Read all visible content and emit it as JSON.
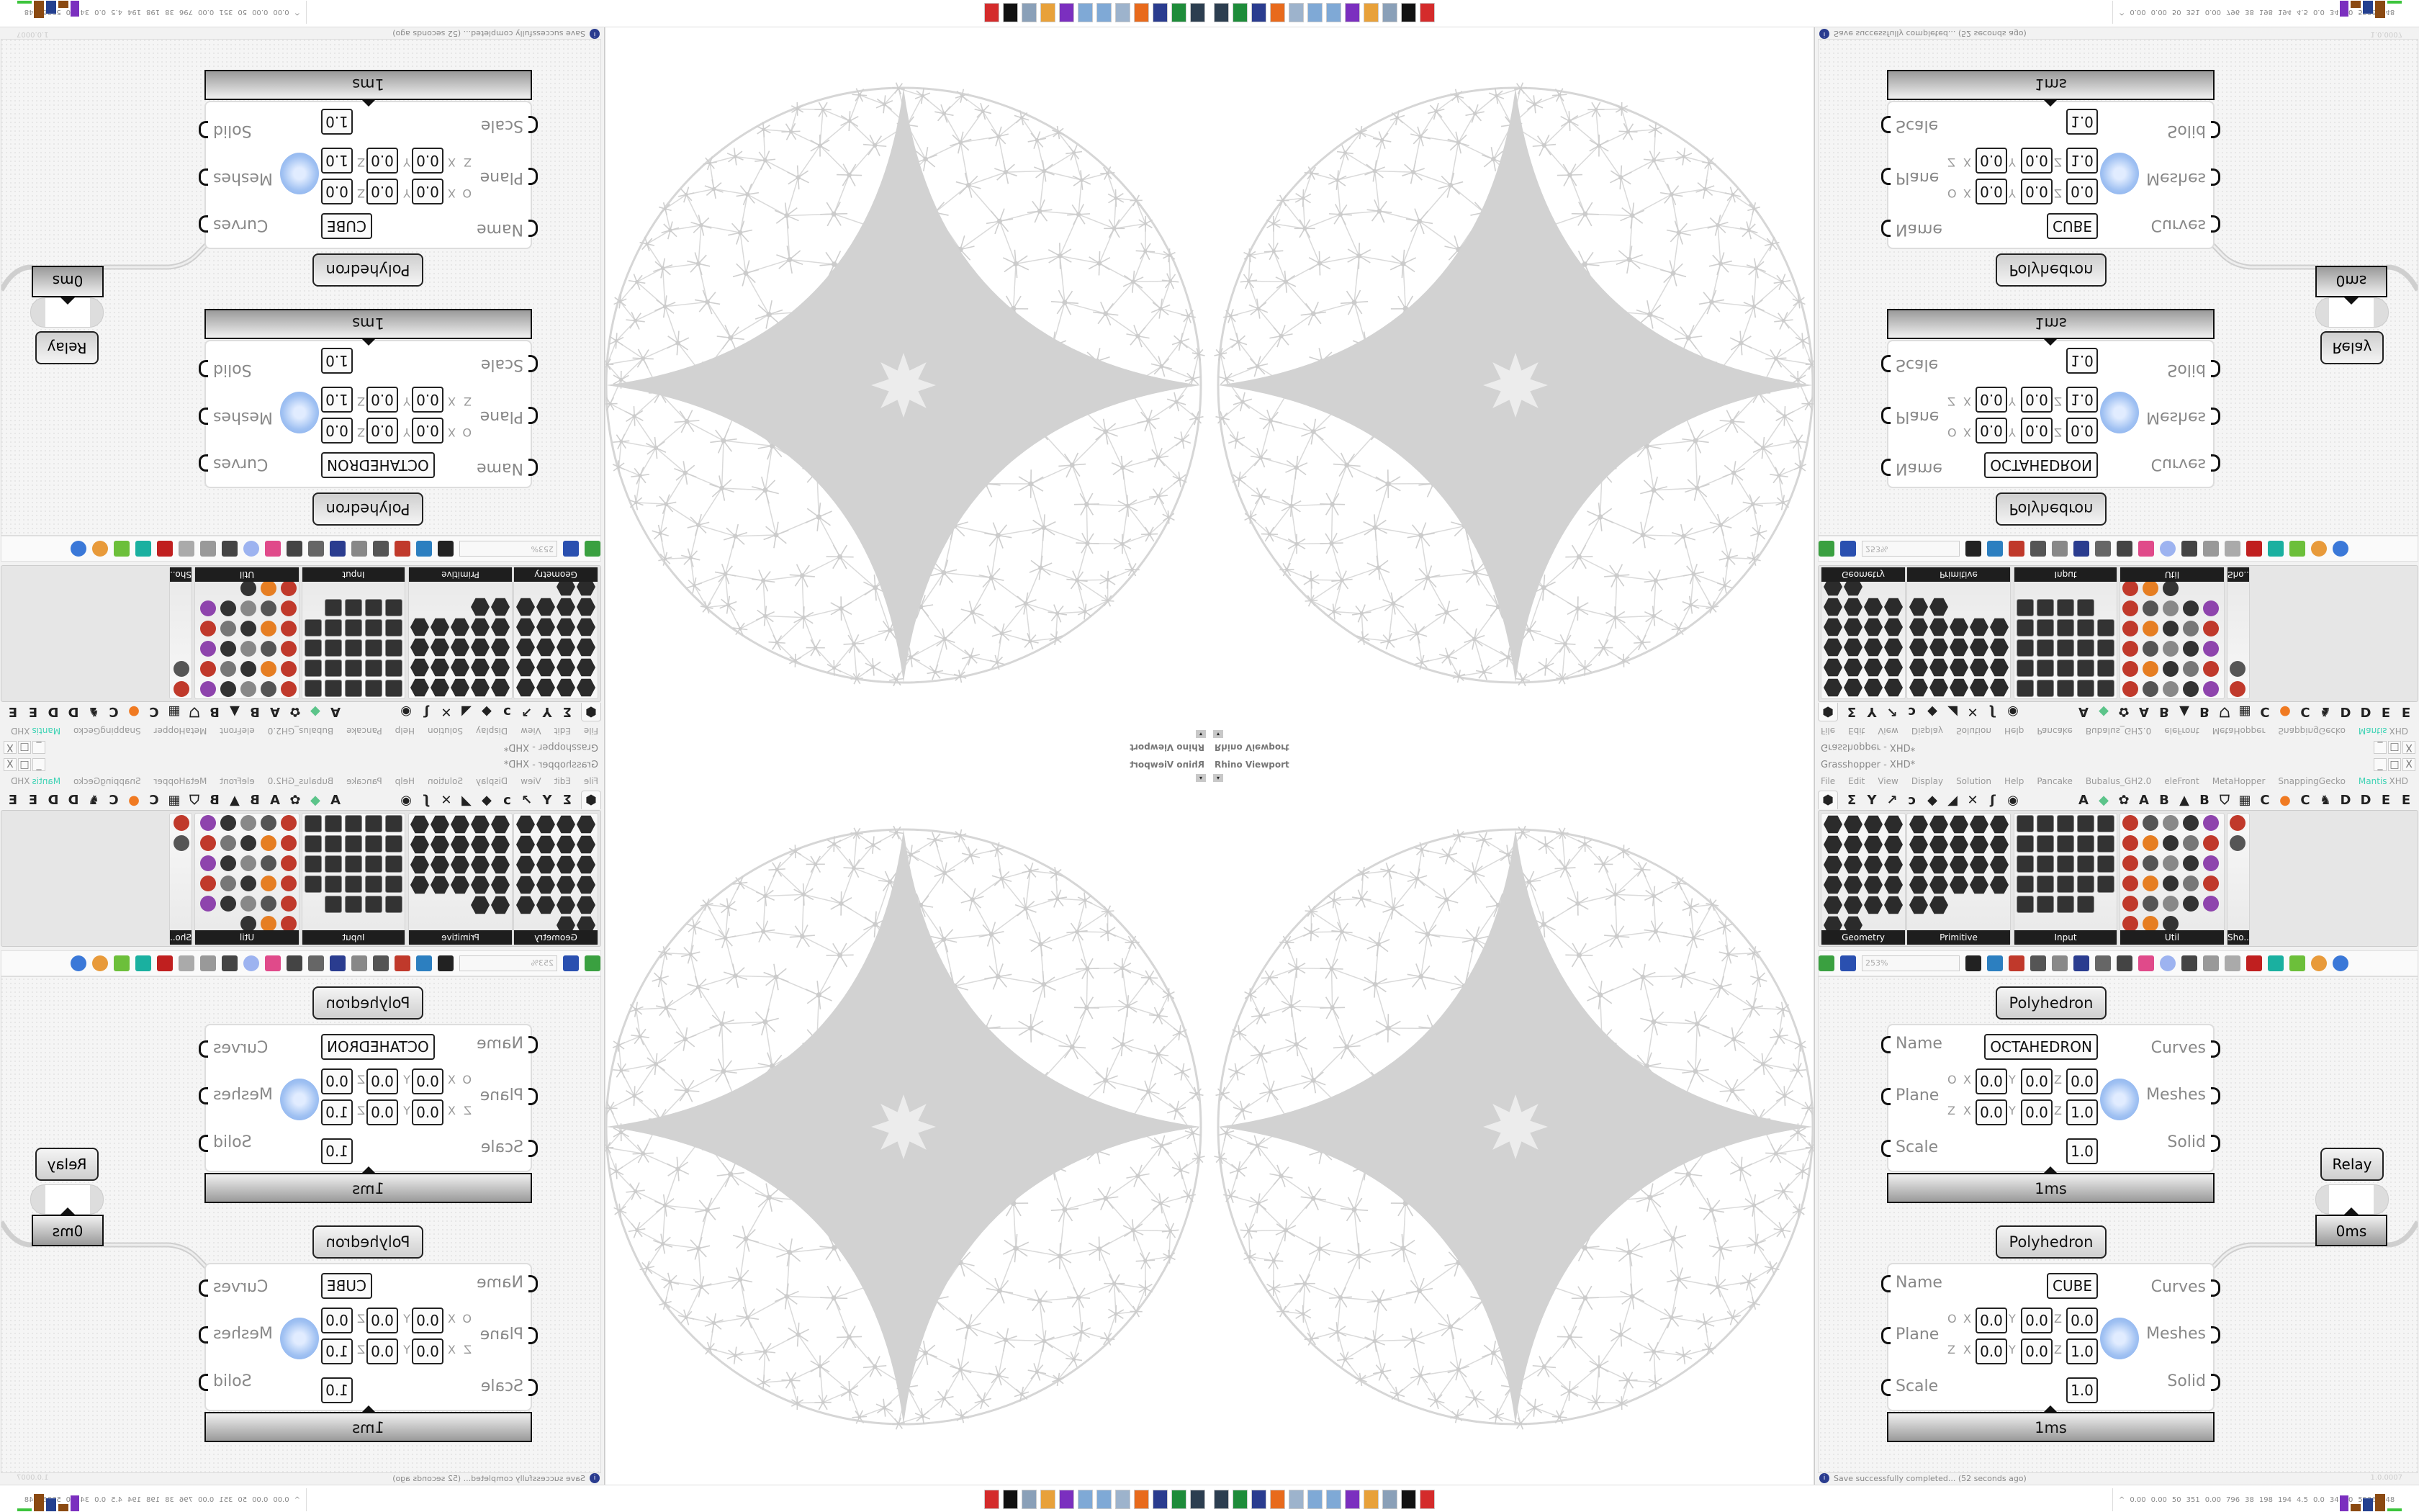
{
  "viewport": {
    "title": "Rhino Viewport",
    "dropdown_glyph": "▾"
  },
  "window": {
    "title": "Grasshopper - XHD*",
    "controls": [
      "_",
      "□",
      "X"
    ],
    "doc_name": "XHD"
  },
  "menu": {
    "items": [
      "File",
      "Edit",
      "View",
      "Display",
      "Solution",
      "Help",
      "Pancake",
      "Bubalus_GH2.0",
      "eleFront",
      "MetaHopper",
      "SnappingGecko",
      "Mantis"
    ],
    "active": "Mantis",
    "active_color": "#3fd3b5"
  },
  "tabs": [
    {
      "glyph": "⬢",
      "name": "params-tab"
    },
    {
      "glyph": "Σ",
      "name": "maths-tab"
    },
    {
      "glyph": "Y",
      "name": "sets-tab"
    },
    {
      "glyph": "↗",
      "name": "vector-tab"
    },
    {
      "glyph": "ↄ",
      "name": "curve-tab"
    },
    {
      "glyph": "◆",
      "name": "surface-tab"
    },
    {
      "glyph": "◢",
      "name": "mesh-tab"
    },
    {
      "glyph": "✕",
      "name": "intersect-tab"
    },
    {
      "glyph": "ʃ",
      "name": "transform-tab"
    },
    {
      "glyph": "◉",
      "name": "display-tab"
    },
    {
      "glyph": "A",
      "name": "plugin-a-tab"
    },
    {
      "glyph": "◆",
      "name": "plugin-gem-tab"
    },
    {
      "glyph": "✿",
      "name": "plugin-flower-tab"
    },
    {
      "glyph": "A",
      "name": "plugin-a2-tab"
    },
    {
      "glyph": "B",
      "name": "plugin-b-tab"
    },
    {
      "glyph": "▲",
      "name": "plugin-mountain-tab"
    },
    {
      "glyph": "B",
      "name": "plugin-b2-tab"
    },
    {
      "glyph": "⛉",
      "name": "plugin-shield-tab"
    },
    {
      "glyph": "▦",
      "name": "plugin-grid-tab"
    },
    {
      "glyph": "C",
      "name": "plugin-c-tab"
    },
    {
      "glyph": "●",
      "name": "plugin-orange-tab"
    },
    {
      "glyph": "C",
      "name": "plugin-c2-tab"
    },
    {
      "glyph": "♞",
      "name": "plugin-horse-tab"
    },
    {
      "glyph": "D",
      "name": "plugin-d-tab"
    },
    {
      "glyph": "D",
      "name": "plugin-d2-tab"
    },
    {
      "glyph": "E",
      "name": "plugin-e-tab"
    },
    {
      "glyph": "E",
      "name": "plugin-e2-tab"
    },
    {
      "glyph": "▦",
      "name": "plugin-more-tab"
    }
  ],
  "ribbon": {
    "panels": [
      {
        "label": "Geometry",
        "shape": "hex",
        "cols": 4,
        "icons": [
          "point",
          "vector",
          "plane",
          "circle",
          "arc",
          "curve",
          "line",
          "box",
          "rectangle",
          "brep",
          "surface",
          "mesh",
          "field",
          "group",
          "twisted-box",
          "atom",
          "geometry",
          "mesh-face",
          "transform",
          "pipeline",
          "geometry-cache",
          "text-dot"
        ]
      },
      {
        "label": "Primitive",
        "shape": "hex",
        "cols": 5,
        "icons": [
          "boolean",
          "colour",
          "complex",
          "culture",
          "data-path",
          "domain",
          "domain2",
          "file-path",
          "integer",
          "interval",
          "matrix",
          "number",
          "shader",
          "structure-path",
          "text",
          "time",
          "data",
          "guid",
          "generic",
          "id",
          "material",
          "fit"
        ]
      },
      {
        "label": "Input",
        "shape": "sq",
        "cols": 5,
        "icons": [
          "panel",
          "button",
          "colour-swatch",
          "3dm",
          "read-file",
          "graph-mapper",
          "gradient",
          "pipeline",
          "xyz",
          "bool-toggle",
          "colour-wheel",
          "img",
          "control-knob",
          "colour-picker",
          "curve-graph",
          "pdb",
          "clock",
          "calendar",
          "data-input",
          "shp",
          "value-list",
          "digital-scope",
          "spectrum",
          "id-tag"
        ]
      },
      {
        "label": "Util",
        "shape": "ut",
        "cols": 5,
        "icons": [
          "cherry",
          "galapagos",
          "arrow",
          "c-sharp",
          "anemone",
          "trigger",
          "record",
          "probe",
          "spiral",
          "gem",
          "gumball",
          "pencil",
          "timer",
          "numeric",
          "flask",
          "tree",
          "slider",
          "egg",
          "expression",
          "fx",
          "ring",
          "loop",
          "premiere",
          "number-tag",
          "palette",
          "abc",
          "forward",
          "gauge"
        ]
      },
      {
        "label": "Sho..",
        "shape": "ut",
        "cols": 1,
        "icons": [
          "snap-1",
          "snap-2"
        ]
      }
    ]
  },
  "canvas_toolbar": {
    "zoom_value": "253%",
    "icons": [
      "open-file",
      "save-file",
      "zoom-extents",
      "preview",
      "sketch",
      "cluster",
      "mail",
      "gha",
      "canvas",
      "search",
      "package",
      "bulb",
      "wires",
      "lamp",
      "ring",
      "red-gem",
      "green-tool",
      "green-shape",
      "sphere-half",
      "blue-sphere"
    ]
  },
  "components": [
    {
      "title": "Polyhedron",
      "name_value": "OCTAHEDRON",
      "inputs": [
        "Name",
        "Plane",
        "Scale"
      ],
      "outputs": [
        "Curves",
        "Meshes",
        "Solid"
      ],
      "origin": {
        "label": "O",
        "x": "0.0",
        "y": "0.0",
        "z": "0.0"
      },
      "zaxis": {
        "label": "Z",
        "x": "0.0",
        "y": "0.0",
        "z": "1.0"
      },
      "scale": "1.0",
      "time": "1ms"
    },
    {
      "title": "Polyhedron",
      "name_value": "CUBE",
      "inputs": [
        "Name",
        "Plane",
        "Scale"
      ],
      "outputs": [
        "Curves",
        "Meshes",
        "Solid"
      ],
      "origin": {
        "label": "O",
        "x": "0.0",
        "y": "0.0",
        "z": "0.0"
      },
      "zaxis": {
        "label": "Z",
        "x": "0.0",
        "y": "0.0",
        "z": "1.0"
      },
      "scale": "1.0",
      "time": "1ms"
    }
  ],
  "axis_labels": {
    "x": "X",
    "y": "Y",
    "z": "Z"
  },
  "relay": {
    "label": "Relay",
    "time": "0ms"
  },
  "status": {
    "message": "Save successfully completed... (52 seconds ago)",
    "info_glyph": "i",
    "version": "1.0.0007"
  },
  "taskbar": {
    "app_icons": [
      "#2c3e50",
      "#1e8c3a",
      "#2a3c8f",
      "#e86a1c",
      "#9db3cc",
      "#7fa9d6",
      "#7fa9d6",
      "#7b2fbf",
      "#e8a13a",
      "#8aa0b8",
      "#111111",
      "#d42b2b"
    ],
    "stats": [
      "0.00",
      "0.00",
      "50",
      "351",
      "0.00",
      "796",
      "38",
      "198",
      "194",
      "4.5",
      "0.0",
      "34",
      "30",
      "55267048"
    ]
  }
}
